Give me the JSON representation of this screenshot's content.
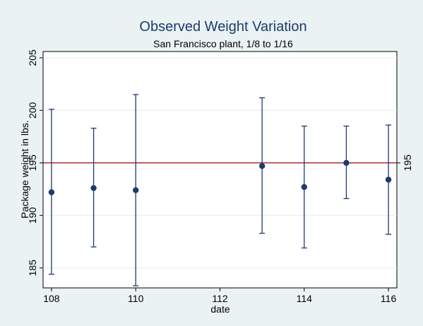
{
  "chart_data": {
    "type": "scatter",
    "title": "Observed Weight Variation",
    "subtitle": "San Francisco plant, 1/8 to 1/16",
    "xlabel": "date",
    "ylabel": "Package weight in lbs.",
    "xlim": [
      107.8,
      116.2
    ],
    "ylim": [
      183.1,
      205.6
    ],
    "xticks": [
      108,
      110,
      112,
      114,
      116
    ],
    "yticks": [
      185,
      190,
      195,
      200,
      205
    ],
    "grid": true,
    "series": [
      {
        "x": [
          108,
          109,
          110,
          113,
          114,
          115,
          116
        ],
        "y": [
          192.2,
          192.6,
          192.4,
          194.7,
          192.7,
          195.0,
          193.4
        ],
        "lower": [
          184.4,
          187.0,
          183.3,
          188.3,
          186.9,
          191.6,
          188.2
        ],
        "upper": [
          200.1,
          198.3,
          201.5,
          201.2,
          198.5,
          198.5,
          198.6
        ]
      }
    ],
    "reference_line": {
      "y": 195,
      "label": "195",
      "color": "#a0182c"
    },
    "colors": {
      "marker": "#1e3a6e",
      "background": "#eaf2f3",
      "plot_area": "#ffffff"
    }
  }
}
